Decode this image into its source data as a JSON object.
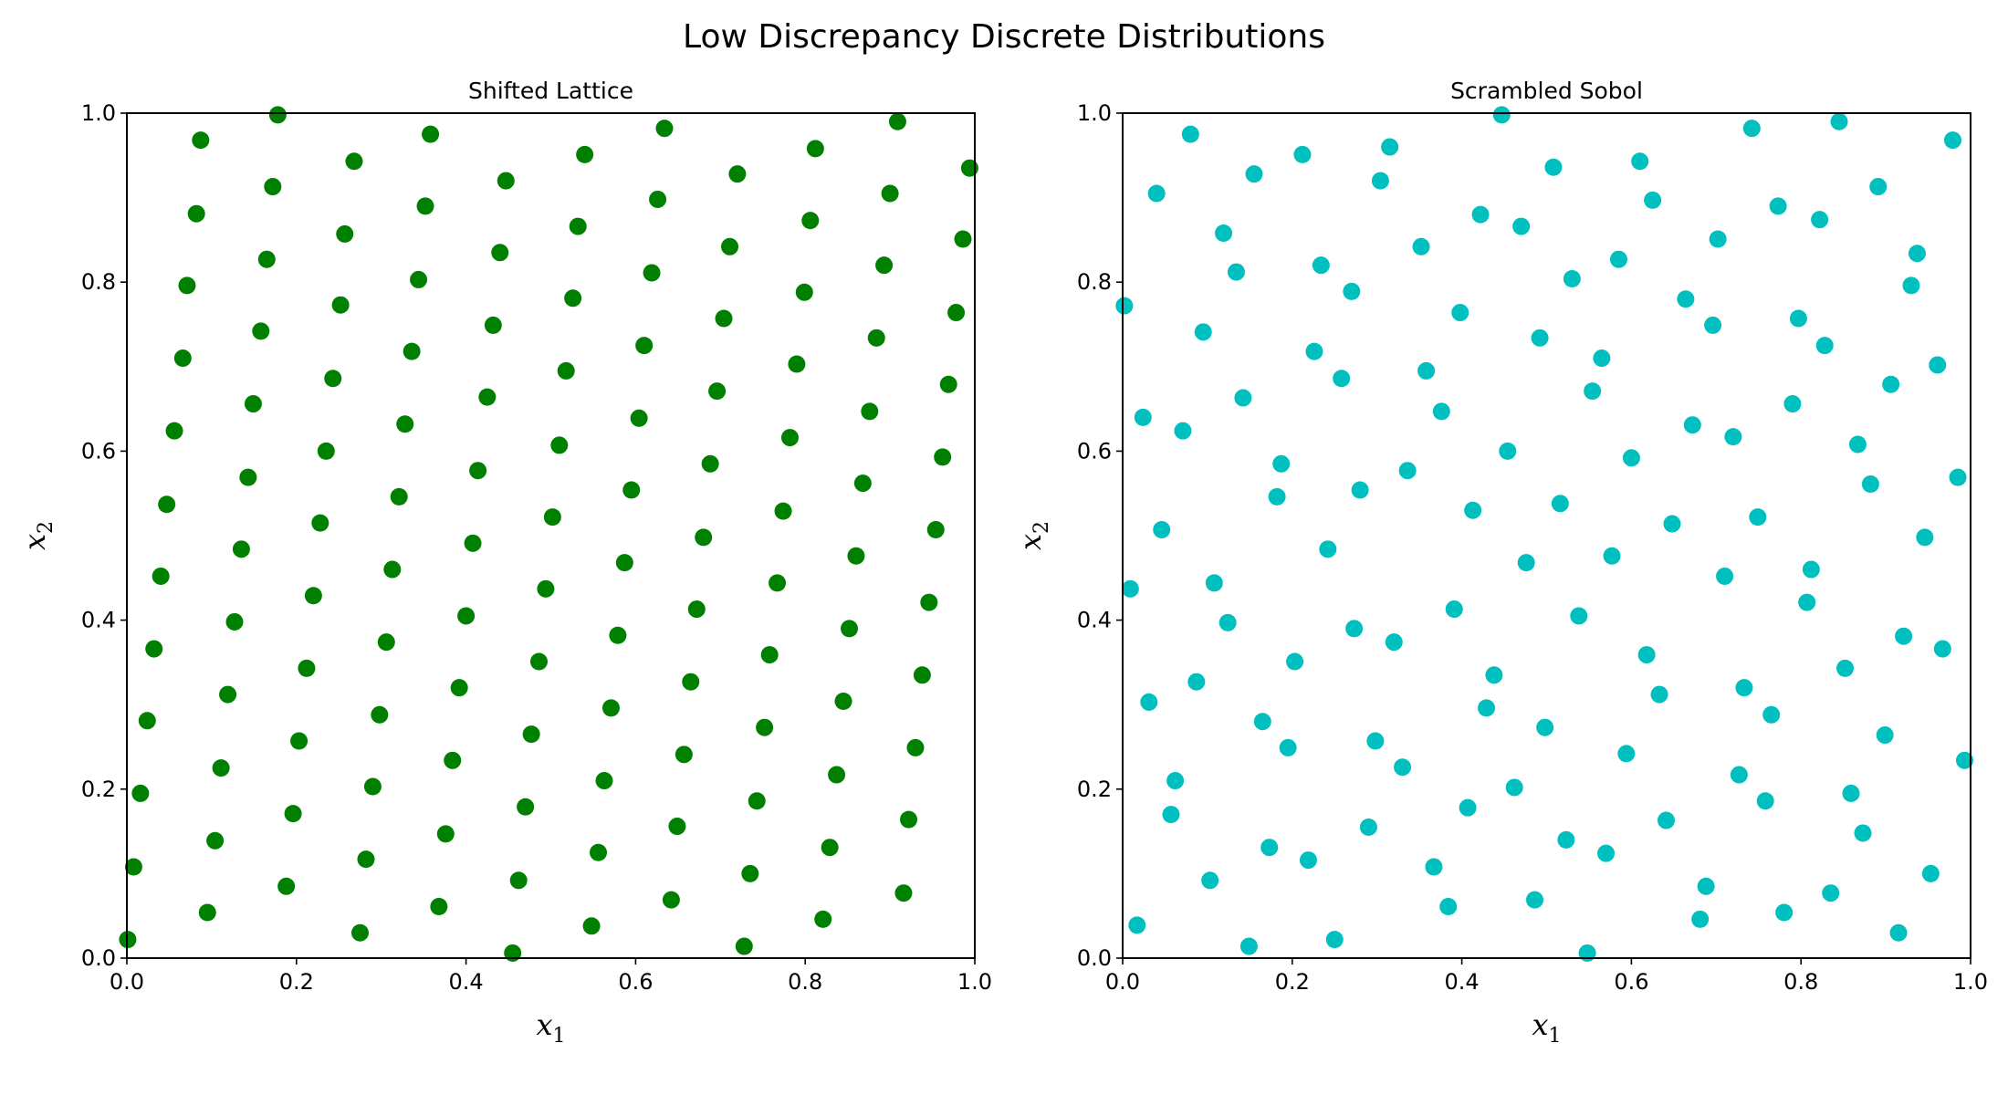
{
  "figure": {
    "title": "Low Discrepancy Discrete Distributions"
  },
  "chart_data": [
    {
      "type": "scatter",
      "title": "Shifted Lattice",
      "xlabel": "x",
      "xlabel_sub": "1",
      "ylabel": "x",
      "ylabel_sub": "2",
      "xlim": [
        0,
        1
      ],
      "ylim": [
        0,
        1
      ],
      "xticks": [
        "0.0",
        "0.2",
        "0.4",
        "0.6",
        "0.8",
        "1.0"
      ],
      "yticks": [
        "0.0",
        "0.2",
        "0.4",
        "0.6",
        "0.8",
        "1.0"
      ],
      "grid": false,
      "color": "#008000",
      "points": [
        [
          0.178,
          0.998
        ],
        [
          0.087,
          0.968
        ],
        [
          0.358,
          0.975
        ],
        [
          0.634,
          0.982
        ],
        [
          0.909,
          0.99
        ],
        [
          0.268,
          0.943
        ],
        [
          0.54,
          0.951
        ],
        [
          0.812,
          0.958
        ],
        [
          0.994,
          0.935
        ],
        [
          0.447,
          0.92
        ],
        [
          0.72,
          0.928
        ],
        [
          0.172,
          0.913
        ],
        [
          0.082,
          0.881
        ],
        [
          0.352,
          0.89
        ],
        [
          0.626,
          0.898
        ],
        [
          0.9,
          0.905
        ],
        [
          0.257,
          0.857
        ],
        [
          0.532,
          0.866
        ],
        [
          0.806,
          0.873
        ],
        [
          0.986,
          0.851
        ],
        [
          0.165,
          0.827
        ],
        [
          0.44,
          0.835
        ],
        [
          0.711,
          0.842
        ],
        [
          0.071,
          0.796
        ],
        [
          0.344,
          0.803
        ],
        [
          0.619,
          0.811
        ],
        [
          0.893,
          0.82
        ],
        [
          0.252,
          0.773
        ],
        [
          0.526,
          0.781
        ],
        [
          0.799,
          0.788
        ],
        [
          0.978,
          0.764
        ],
        [
          0.158,
          0.742
        ],
        [
          0.432,
          0.749
        ],
        [
          0.704,
          0.757
        ],
        [
          0.066,
          0.71
        ],
        [
          0.336,
          0.718
        ],
        [
          0.61,
          0.725
        ],
        [
          0.884,
          0.734
        ],
        [
          0.243,
          0.686
        ],
        [
          0.518,
          0.695
        ],
        [
          0.79,
          0.703
        ],
        [
          0.969,
          0.679
        ],
        [
          0.149,
          0.656
        ],
        [
          0.425,
          0.664
        ],
        [
          0.696,
          0.671
        ],
        [
          0.056,
          0.624
        ],
        [
          0.328,
          0.632
        ],
        [
          0.604,
          0.639
        ],
        [
          0.876,
          0.647
        ],
        [
          0.235,
          0.6
        ],
        [
          0.51,
          0.607
        ],
        [
          0.782,
          0.616
        ],
        [
          0.962,
          0.593
        ],
        [
          0.143,
          0.569
        ],
        [
          0.414,
          0.577
        ],
        [
          0.688,
          0.585
        ],
        [
          0.047,
          0.537
        ],
        [
          0.321,
          0.546
        ],
        [
          0.595,
          0.554
        ],
        [
          0.868,
          0.562
        ],
        [
          0.228,
          0.515
        ],
        [
          0.502,
          0.522
        ],
        [
          0.774,
          0.529
        ],
        [
          0.954,
          0.507
        ],
        [
          0.135,
          0.484
        ],
        [
          0.408,
          0.491
        ],
        [
          0.68,
          0.498
        ],
        [
          0.04,
          0.452
        ],
        [
          0.313,
          0.46
        ],
        [
          0.587,
          0.468
        ],
        [
          0.86,
          0.476
        ],
        [
          0.22,
          0.429
        ],
        [
          0.494,
          0.437
        ],
        [
          0.767,
          0.444
        ],
        [
          0.946,
          0.421
        ],
        [
          0.127,
          0.398
        ],
        [
          0.4,
          0.405
        ],
        [
          0.672,
          0.413
        ],
        [
          0.032,
          0.366
        ],
        [
          0.306,
          0.374
        ],
        [
          0.579,
          0.382
        ],
        [
          0.852,
          0.39
        ],
        [
          0.212,
          0.343
        ],
        [
          0.486,
          0.351
        ],
        [
          0.758,
          0.359
        ],
        [
          0.938,
          0.335
        ],
        [
          0.119,
          0.312
        ],
        [
          0.392,
          0.32
        ],
        [
          0.665,
          0.327
        ],
        [
          0.024,
          0.281
        ],
        [
          0.298,
          0.288
        ],
        [
          0.571,
          0.296
        ],
        [
          0.845,
          0.304
        ],
        [
          0.203,
          0.257
        ],
        [
          0.477,
          0.265
        ],
        [
          0.752,
          0.273
        ],
        [
          0.93,
          0.249
        ],
        [
          0.111,
          0.225
        ],
        [
          0.384,
          0.234
        ],
        [
          0.657,
          0.241
        ],
        [
          0.016,
          0.195
        ],
        [
          0.29,
          0.203
        ],
        [
          0.563,
          0.21
        ],
        [
          0.837,
          0.217
        ],
        [
          0.196,
          0.171
        ],
        [
          0.47,
          0.179
        ],
        [
          0.743,
          0.186
        ],
        [
          0.922,
          0.164
        ],
        [
          0.104,
          0.139
        ],
        [
          0.376,
          0.147
        ],
        [
          0.649,
          0.156
        ],
        [
          0.008,
          0.108
        ],
        [
          0.282,
          0.117
        ],
        [
          0.556,
          0.125
        ],
        [
          0.829,
          0.131
        ],
        [
          0.188,
          0.085
        ],
        [
          0.462,
          0.092
        ],
        [
          0.735,
          0.1
        ],
        [
          0.916,
          0.077
        ],
        [
          0.095,
          0.054
        ],
        [
          0.368,
          0.061
        ],
        [
          0.642,
          0.069
        ],
        [
          0.001,
          0.022
        ],
        [
          0.275,
          0.03
        ],
        [
          0.548,
          0.038
        ],
        [
          0.821,
          0.046
        ],
        [
          0.455,
          0.006
        ],
        [
          0.728,
          0.014
        ]
      ]
    },
    {
      "type": "scatter",
      "title": "Scrambled Sobol",
      "xlabel": "x",
      "xlabel_sub": "1",
      "ylabel": "x",
      "ylabel_sub": "2",
      "xlim": [
        0,
        1
      ],
      "ylim": [
        0,
        1
      ],
      "xticks": [
        "0.0",
        "0.2",
        "0.4",
        "0.6",
        "0.8",
        "1.0"
      ],
      "yticks": [
        "0.0",
        "0.2",
        "0.4",
        "0.6",
        "0.8",
        "1.0"
      ],
      "grid": false,
      "color": "#00bfbf",
      "points": [
        [
          0.447,
          0.998
        ],
        [
          0.845,
          0.99
        ],
        [
          0.742,
          0.982
        ],
        [
          0.08,
          0.975
        ],
        [
          0.979,
          0.968
        ],
        [
          0.212,
          0.951
        ],
        [
          0.315,
          0.96
        ],
        [
          0.155,
          0.928
        ],
        [
          0.61,
          0.943
        ],
        [
          0.508,
          0.936
        ],
        [
          0.304,
          0.92
        ],
        [
          0.891,
          0.913
        ],
        [
          0.04,
          0.905
        ],
        [
          0.625,
          0.897
        ],
        [
          0.773,
          0.89
        ],
        [
          0.822,
          0.874
        ],
        [
          0.422,
          0.88
        ],
        [
          0.47,
          0.866
        ],
        [
          0.119,
          0.858
        ],
        [
          0.702,
          0.851
        ],
        [
          0.352,
          0.842
        ],
        [
          0.937,
          0.834
        ],
        [
          0.585,
          0.827
        ],
        [
          0.234,
          0.82
        ],
        [
          0.134,
          0.812
        ],
        [
          0.53,
          0.804
        ],
        [
          0.93,
          0.796
        ],
        [
          0.27,
          0.789
        ],
        [
          0.664,
          0.78
        ],
        [
          0.002,
          0.772
        ],
        [
          0.398,
          0.764
        ],
        [
          0.797,
          0.757
        ],
        [
          0.696,
          0.749
        ],
        [
          0.095,
          0.741
        ],
        [
          0.492,
          0.734
        ],
        [
          0.828,
          0.725
        ],
        [
          0.226,
          0.718
        ],
        [
          0.565,
          0.71
        ],
        [
          0.961,
          0.702
        ],
        [
          0.358,
          0.695
        ],
        [
          0.258,
          0.686
        ],
        [
          0.906,
          0.679
        ],
        [
          0.554,
          0.671
        ],
        [
          0.142,
          0.663
        ],
        [
          0.79,
          0.656
        ],
        [
          0.376,
          0.647
        ],
        [
          0.024,
          0.64
        ],
        [
          0.672,
          0.631
        ],
        [
          0.071,
          0.624
        ],
        [
          0.72,
          0.617
        ],
        [
          0.867,
          0.608
        ],
        [
          0.454,
          0.6
        ],
        [
          0.6,
          0.592
        ],
        [
          0.187,
          0.585
        ],
        [
          0.336,
          0.577
        ],
        [
          0.985,
          0.569
        ],
        [
          0.882,
          0.561
        ],
        [
          0.28,
          0.554
        ],
        [
          0.182,
          0.546
        ],
        [
          0.516,
          0.538
        ],
        [
          0.413,
          0.53
        ],
        [
          0.749,
          0.522
        ],
        [
          0.648,
          0.514
        ],
        [
          0.046,
          0.507
        ],
        [
          0.946,
          0.498
        ],
        [
          0.242,
          0.484
        ],
        [
          0.577,
          0.476
        ],
        [
          0.476,
          0.468
        ],
        [
          0.812,
          0.46
        ],
        [
          0.71,
          0.452
        ],
        [
          0.108,
          0.444
        ],
        [
          0.009,
          0.437
        ],
        [
          0.807,
          0.421
        ],
        [
          0.391,
          0.413
        ],
        [
          0.538,
          0.405
        ],
        [
          0.124,
          0.397
        ],
        [
          0.273,
          0.39
        ],
        [
          0.921,
          0.381
        ],
        [
          0.967,
          0.366
        ],
        [
          0.32,
          0.374
        ],
        [
          0.618,
          0.359
        ],
        [
          0.203,
          0.351
        ],
        [
          0.852,
          0.343
        ],
        [
          0.438,
          0.335
        ],
        [
          0.087,
          0.327
        ],
        [
          0.733,
          0.32
        ],
        [
          0.633,
          0.312
        ],
        [
          0.031,
          0.303
        ],
        [
          0.429,
          0.296
        ],
        [
          0.765,
          0.288
        ],
        [
          0.165,
          0.28
        ],
        [
          0.498,
          0.273
        ],
        [
          0.899,
          0.264
        ],
        [
          0.298,
          0.257
        ],
        [
          0.195,
          0.249
        ],
        [
          0.594,
          0.242
        ],
        [
          0.993,
          0.234
        ],
        [
          0.33,
          0.226
        ],
        [
          0.727,
          0.217
        ],
        [
          0.062,
          0.21
        ],
        [
          0.462,
          0.202
        ],
        [
          0.859,
          0.195
        ],
        [
          0.758,
          0.186
        ],
        [
          0.407,
          0.178
        ],
        [
          0.057,
          0.17
        ],
        [
          0.641,
          0.163
        ],
        [
          0.29,
          0.155
        ],
        [
          0.873,
          0.148
        ],
        [
          0.523,
          0.14
        ],
        [
          0.173,
          0.131
        ],
        [
          0.57,
          0.124
        ],
        [
          0.219,
          0.116
        ],
        [
          0.367,
          0.108
        ],
        [
          0.953,
          0.1
        ],
        [
          0.103,
          0.092
        ],
        [
          0.688,
          0.085
        ],
        [
          0.835,
          0.077
        ],
        [
          0.486,
          0.069
        ],
        [
          0.384,
          0.061
        ],
        [
          0.78,
          0.054
        ],
        [
          0.681,
          0.046
        ],
        [
          0.017,
          0.039
        ],
        [
          0.915,
          0.03
        ],
        [
          0.25,
          0.022
        ],
        [
          0.149,
          0.014
        ],
        [
          0.548,
          0.006
        ]
      ]
    }
  ]
}
